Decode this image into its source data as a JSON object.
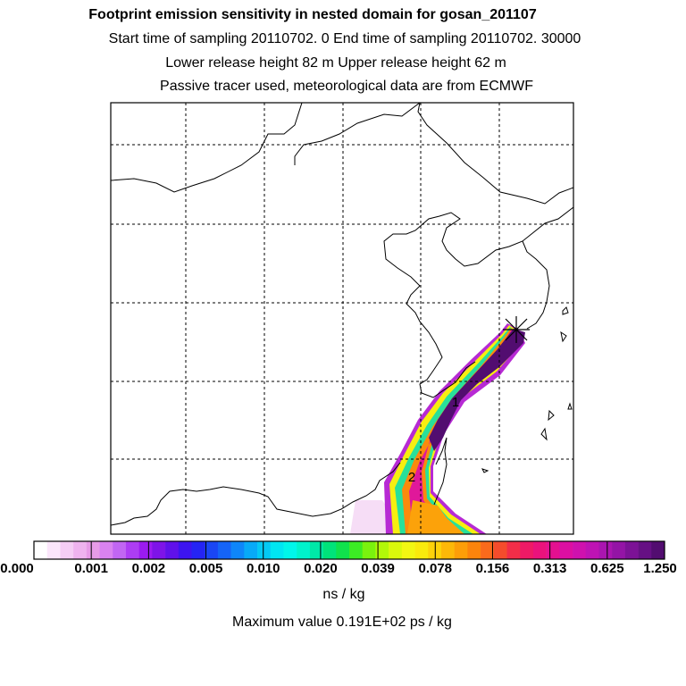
{
  "header": {
    "title": "Footprint emission sensitivity in nested domain for gosan_201107",
    "line2": "Start time of sampling 20110702.     0     End time of sampling 20110702. 30000",
    "line3": "Lower release height   82 m          Upper release height   62 m",
    "line4": "Passive tracer used, meteorological data are from ECMWF"
  },
  "map": {
    "markers": [
      {
        "name": "release-site",
        "label": ""
      },
      {
        "name": "day-1",
        "label": "1"
      },
      {
        "name": "day-2",
        "label": "2"
      }
    ]
  },
  "colorbar": {
    "swatches": [
      "#ffffff",
      "#fbe6fb",
      "#f5cdf5",
      "#efb3ef",
      "#e79be7",
      "#d982f0",
      "#c166f3",
      "#ad3df4",
      "#9b1bf0",
      "#7e14e8",
      "#6011ea",
      "#3d14f0",
      "#2524f4",
      "#1a46f5",
      "#1564f7",
      "#0f86f9",
      "#08aaf7",
      "#04c9f4",
      "#00e6f2",
      "#00f6ea",
      "#00f3cc",
      "#00e9a8",
      "#00e37a",
      "#10e24c",
      "#3cec24",
      "#7af20e",
      "#b2f808",
      "#daf90c",
      "#f2f712",
      "#faea0c",
      "#fcd20a",
      "#fdb808",
      "#fd9e08",
      "#fc840c",
      "#f96a1c",
      "#f54c2c",
      "#f22e48",
      "#ee1a66",
      "#ea127c",
      "#e41090",
      "#dc0fa2",
      "#cf11ae",
      "#be13b4",
      "#aa15b0",
      "#9414a6",
      "#7c1296",
      "#661084",
      "#520d70"
    ],
    "tick_labels": [
      "0.000",
      "0.001",
      "0.002",
      "0.005",
      "0.010",
      "0.020",
      "0.039",
      "0.078",
      "0.156",
      "0.313",
      "0.625",
      "1.250"
    ],
    "unit": "ns / kg",
    "max_value": "Maximum value  0.191E+02 ps / kg"
  },
  "colors": {
    "max_color": "#520d70",
    "band_color": "#fff200"
  }
}
